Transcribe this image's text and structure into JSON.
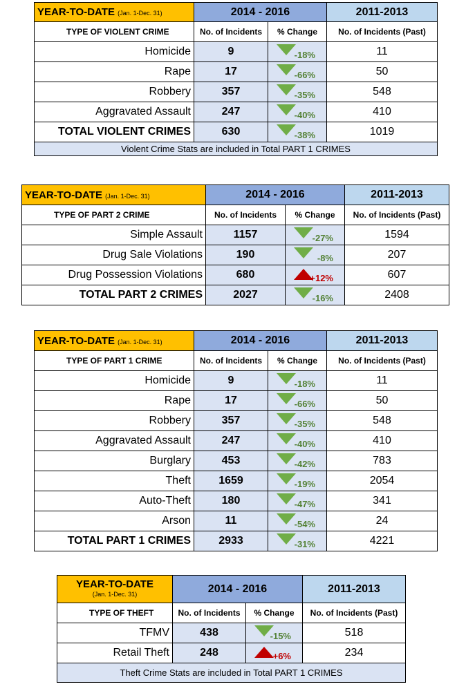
{
  "common": {
    "ytd_title": "YEAR-TO-DATE",
    "ytd_range": "(Jan. 1-Dec. 31)",
    "period_new": "2014 - 2016",
    "period_old": "2011-2013",
    "col_incidents": "No. of Incidents",
    "col_change": "% Change",
    "col_past": "No. of Incidents (Past)"
  },
  "violent": {
    "type_header": "TYPE OF VIOLENT CRIME",
    "rows": [
      {
        "label": "Homicide",
        "incidents": "9",
        "change": "-18%",
        "direction": "down",
        "past": "11"
      },
      {
        "label": "Rape",
        "incidents": "17",
        "change": "-66%",
        "direction": "down",
        "past": "50"
      },
      {
        "label": "Robbery",
        "incidents": "357",
        "change": "-35%",
        "direction": "down",
        "past": "548"
      },
      {
        "label": "Aggravated Assault",
        "incidents": "247",
        "change": "-40%",
        "direction": "down",
        "past": "410"
      }
    ],
    "total": {
      "label": "TOTAL VIOLENT CRIMES",
      "incidents": "630",
      "change": "-38%",
      "direction": "down",
      "past": "1019"
    },
    "note": "Violent Crime Stats are included in Total PART 1 CRIMES"
  },
  "part2": {
    "type_header": "TYPE OF PART 2 CRIME",
    "rows": [
      {
        "label": "Simple Assault",
        "incidents": "1157",
        "change": "-27%",
        "direction": "down",
        "past": "1594"
      },
      {
        "label": "Drug Sale Violations",
        "incidents": "190",
        "change": "-8%",
        "direction": "down",
        "past": "207"
      },
      {
        "label": "Drug Possession Violations",
        "incidents": "680",
        "change": "+12%",
        "direction": "up",
        "past": "607"
      }
    ],
    "total": {
      "label": "TOTAL PART 2 CRIMES",
      "incidents": "2027",
      "change": "-16%",
      "direction": "down",
      "past": "2408"
    }
  },
  "part1": {
    "type_header": "TYPE OF PART 1 CRIME",
    "rows": [
      {
        "label": "Homicide",
        "incidents": "9",
        "change": "-18%",
        "direction": "down",
        "past": "11"
      },
      {
        "label": "Rape",
        "incidents": "17",
        "change": "-66%",
        "direction": "down",
        "past": "50"
      },
      {
        "label": "Robbery",
        "incidents": "357",
        "change": "-35%",
        "direction": "down",
        "past": "548"
      },
      {
        "label": "Aggravated Assault",
        "incidents": "247",
        "change": "-40%",
        "direction": "down",
        "past": "410"
      },
      {
        "label": "Burglary",
        "incidents": "453",
        "change": "-42%",
        "direction": "down",
        "past": "783"
      },
      {
        "label": "Theft",
        "incidents": "1659",
        "change": "-19%",
        "direction": "down",
        "past": "2054"
      },
      {
        "label": "Auto-Theft",
        "incidents": "180",
        "change": "-47%",
        "direction": "down",
        "past": "341"
      },
      {
        "label": "Arson",
        "incidents": "11",
        "change": "-54%",
        "direction": "down",
        "past": "24"
      }
    ],
    "total": {
      "label": "TOTAL PART 1 CRIMES",
      "incidents": "2933",
      "change": "-31%",
      "direction": "down",
      "past": "4221"
    }
  },
  "theft": {
    "type_header": "TYPE OF THEFT",
    "rows": [
      {
        "label": "TFMV",
        "incidents": "438",
        "change": "-15%",
        "direction": "down",
        "past": "518"
      },
      {
        "label": "Retail Theft",
        "incidents": "248",
        "change": "+6%",
        "direction": "up",
        "past": "234"
      }
    ],
    "note": "Theft Crime Stats are included in Total PART 1 CRIMES"
  }
}
